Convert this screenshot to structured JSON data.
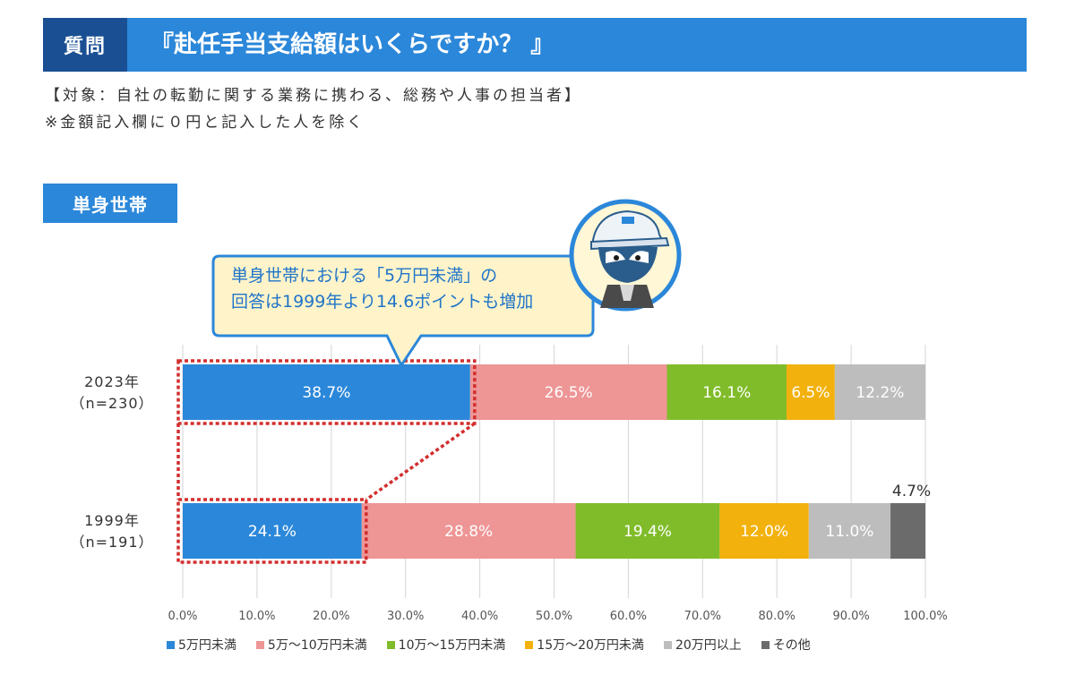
{
  "header": {
    "question_label": "質問",
    "question_text": "『赴任手当支給額はいくらですか？ 』"
  },
  "notes": {
    "target": "【対象：自社の転勤に関する業務に携わる、総務や人事の担当者】",
    "exclusion": "※金額記入欄に０円と記入した人を除く"
  },
  "section_tag": "単身世帯",
  "callout": {
    "line1": "単身世帯における「5万円未満」の",
    "line2": "回答は1999年より14.6ポイントも増加"
  },
  "colors": {
    "header_dark": "#1a4f93",
    "header_light": "#2b87d9",
    "highlight_border": "#d32f2f",
    "callout_border": "#2b87d9"
  },
  "icons": {
    "mascot": "mascot-character-icon"
  },
  "chart_data": {
    "type": "bar",
    "orientation": "horizontal-stacked",
    "categories": [
      "2023年\n（n=230）",
      "1999年\n（n=191）"
    ],
    "category_lines": [
      [
        "2023年",
        "（n=230）"
      ],
      [
        "1999年",
        "（n=191）"
      ]
    ],
    "series": [
      {
        "name": "5万円未満",
        "color": "#2b87d9",
        "values": [
          38.7,
          24.1
        ]
      },
      {
        "name": "5万～10万円未満",
        "color": "#ee9595",
        "values": [
          26.5,
          28.8
        ]
      },
      {
        "name": "10万～15万円未満",
        "color": "#80bc2a",
        "values": [
          16.1,
          19.4
        ]
      },
      {
        "name": "15万～20万円未満",
        "color": "#f2b10c",
        "values": [
          6.5,
          12.0
        ]
      },
      {
        "name": "20万円以上",
        "color": "#bdbdbd",
        "values": [
          12.2,
          11.0
        ]
      },
      {
        "name": "その他",
        "color": "#6b6b6b",
        "values": [
          0,
          4.7
        ]
      }
    ],
    "data_labels": [
      [
        "38.7%",
        "26.5%",
        "16.1%",
        "6.5%",
        "12.2%",
        ""
      ],
      [
        "24.1%",
        "28.8%",
        "19.4%",
        "12.0%",
        "11.0%",
        "4.7%"
      ]
    ],
    "xticks": [
      "0.0%",
      "10.0%",
      "20.0%",
      "30.0%",
      "40.0%",
      "50.0%",
      "60.0%",
      "70.0%",
      "80.0%",
      "90.0%",
      "100.0%"
    ],
    "xlim": [
      0,
      100
    ],
    "grid": true,
    "legend_position": "bottom"
  }
}
